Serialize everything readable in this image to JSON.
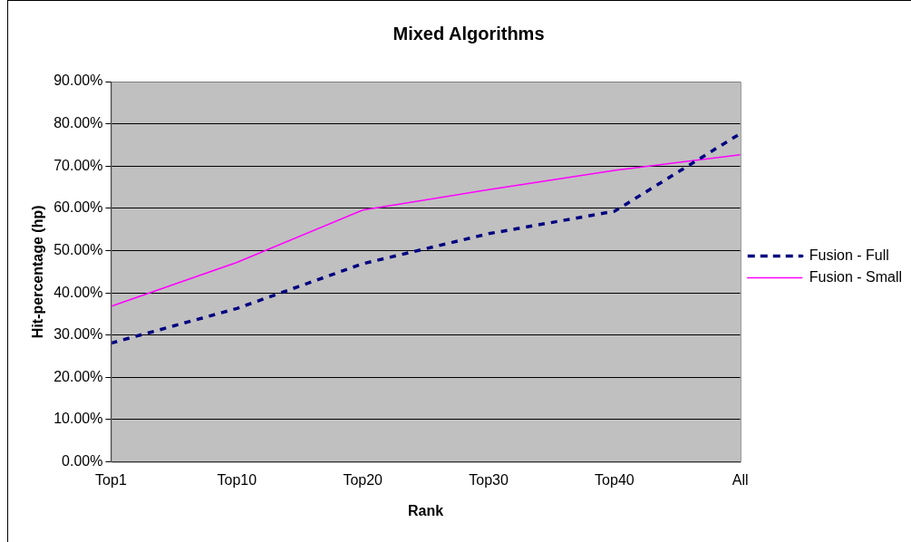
{
  "chart_data": {
    "type": "line",
    "title": "Mixed Algorithms",
    "xlabel": "Rank",
    "ylabel": "Hit-percentage (hp)",
    "categories": [
      "Top1",
      "Top10",
      "Top20",
      "Top30",
      "Top40",
      "All"
    ],
    "series": [
      {
        "name": "Fusion - Full",
        "color": "#000080",
        "line_style": "dashed",
        "values": [
          28.1,
          36.3,
          46.9,
          54.0,
          59.3,
          77.7
        ]
      },
      {
        "name": "Fusion - Small",
        "color": "#ff00ff",
        "line_style": "solid",
        "values": [
          36.8,
          47.2,
          59.6,
          64.4,
          69.0,
          72.7
        ]
      }
    ],
    "ylim": [
      0,
      90
    ],
    "yticks": [
      {
        "value": 0,
        "label": "0.00%"
      },
      {
        "value": 10,
        "label": "10.00%"
      },
      {
        "value": 20,
        "label": "20.00%"
      },
      {
        "value": 30,
        "label": "30.00%"
      },
      {
        "value": 40,
        "label": "40.00%"
      },
      {
        "value": 50,
        "label": "50.00%"
      },
      {
        "value": 60,
        "label": "60.00%"
      },
      {
        "value": 70,
        "label": "70.00%"
      },
      {
        "value": 80,
        "label": "80.00%"
      },
      {
        "value": 90,
        "label": "90.00%"
      }
    ],
    "grid": "y",
    "legend": "right",
    "marker": "none"
  }
}
